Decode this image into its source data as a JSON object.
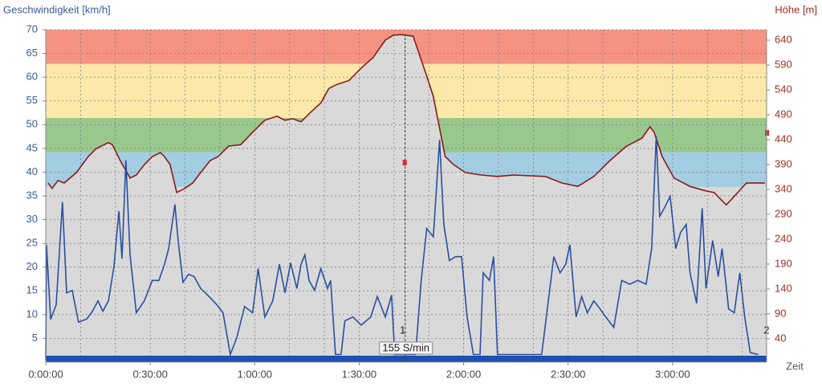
{
  "chart_data": {
    "type": "line",
    "y_label": "Geschwindigkeit [km/h]",
    "y2_label": "Höhe [m]",
    "x_label": "Zeit",
    "xlim": [
      0,
      207
    ],
    "xticks": [
      {
        "value": 0,
        "label": "0:00:00"
      },
      {
        "value": 30,
        "label": "0:30:00"
      },
      {
        "value": 60,
        "label": "1:00:00"
      },
      {
        "value": 90,
        "label": "1:30:00"
      },
      {
        "value": 120,
        "label": "2:00:00"
      },
      {
        "value": 150,
        "label": "2:30:00"
      },
      {
        "value": 180,
        "label": "3:00:00"
      }
    ],
    "x_minor_grid": [
      10,
      20,
      40,
      50,
      70,
      80,
      100,
      110,
      130,
      140,
      160,
      170,
      190,
      200
    ],
    "ylim": [
      0,
      70
    ],
    "yticks": [
      5,
      10,
      15,
      20,
      25,
      30,
      35,
      40,
      45,
      50,
      55,
      60,
      65,
      70
    ],
    "y2lim": [
      -7,
      661
    ],
    "y2ticks": [
      40,
      90,
      140,
      190,
      240,
      290,
      340,
      390,
      440,
      490,
      540,
      590,
      640
    ],
    "grid": true,
    "background": "#d9d9d9",
    "zones": [
      {
        "from": 62.8,
        "to": 70,
        "color": "#f59382"
      },
      {
        "from": 51.4,
        "to": 62.8,
        "color": "#fce8a8"
      },
      {
        "from": 44.2,
        "to": 51.4,
        "color": "#98c88c"
      },
      {
        "from": 36.9,
        "to": 44.2,
        "color": "#a2cde2"
      }
    ],
    "series": [
      {
        "name": "Höhe",
        "axis": "y2",
        "color": "#8b1a1a",
        "fill": "#d9d9d9",
        "x": [
          0.7,
          1.8,
          3.5,
          5.3,
          8.8,
          12.2,
          14.5,
          18.0,
          19.1,
          21.4,
          24.2,
          26.0,
          28.3,
          30.6,
          32.9,
          34.1,
          35.7,
          37.6,
          39.9,
          42.2,
          44.5,
          47.2,
          49.5,
          52.5,
          56.0,
          59.4,
          62.9,
          66.4,
          68.7,
          71.0,
          73.3,
          75.6,
          79.0,
          81.3,
          83.6,
          87.1,
          90.6,
          94.0,
          97.5,
          99.8,
          102.1,
          105.5,
          109.0,
          111.3,
          113.1,
          114.7,
          117.1,
          120.5,
          125.1,
          129.7,
          134.3,
          143.5,
          148.2,
          152.8,
          157.4,
          162.0,
          166.6,
          171.2,
          173.5,
          174.7,
          177.0,
          180.4,
          185.0,
          189.6,
          191.9,
          195.4,
          197.7,
          201.2,
          206.5
        ],
        "values": [
          353,
          342,
          358,
          353,
          374,
          406,
          422,
          434,
          430,
          398,
          363,
          369,
          390,
          406,
          414,
          406,
          390,
          334,
          342,
          353,
          374,
          398,
          406,
          427,
          430,
          455,
          479,
          487,
          479,
          482,
          476,
          492,
          514,
          543,
          551,
          559,
          584,
          605,
          640,
          650,
          651,
          648,
          576,
          527,
          463,
          406,
          390,
          374,
          369,
          366,
          369,
          366,
          353,
          346,
          366,
          398,
          426,
          443,
          466,
          455,
          406,
          363,
          346,
          337,
          334,
          309,
          326,
          353,
          353
        ]
      },
      {
        "name": "Geschwindigkeit",
        "axis": "y",
        "color": "#2a4fa0",
        "x": [
          0,
          0.2,
          1.4,
          3.0,
          4.8,
          6.0,
          7.6,
          9.4,
          11.8,
          13.4,
          15.0,
          16.4,
          18.0,
          19.6,
          21.0,
          21.9,
          23.0,
          24.2,
          26.0,
          28.3,
          30.6,
          32.5,
          34.1,
          35.3,
          37.1,
          38.0,
          39.4,
          41.0,
          42.6,
          44.5,
          46.8,
          49.1,
          50.9,
          53.0,
          54.8,
          57.1,
          59.4,
          61.0,
          62.9,
          65.2,
          67.1,
          68.7,
          70.3,
          72.1,
          73.3,
          74.4,
          75.6,
          77.2,
          79.0,
          80.9,
          81.8,
          83.2,
          84.8,
          85.9,
          88.2,
          90.6,
          93.3,
          95.2,
          97.5,
          99.3,
          100.2,
          106.2,
          107.8,
          109.4,
          111.3,
          113.1,
          114.3,
          115.9,
          117.7,
          119.4,
          121.0,
          122.8,
          124.7,
          125.6,
          127.4,
          128.6,
          129.7,
          142.4,
          145.9,
          147.7,
          149.3,
          150.5,
          152.3,
          153.9,
          155.5,
          157.4,
          159.2,
          160.8,
          163.1,
          165.4,
          167.7,
          170.0,
          172.4,
          174.0,
          175.3,
          176.3,
          177.6,
          179.3,
          180.9,
          182.3,
          183.9,
          185.0,
          186.9,
          188.5,
          189.6,
          191.5,
          193.1,
          194.2,
          196.1,
          197.7,
          199.3,
          200.7,
          202.3,
          204.6
        ],
        "values": [
          0.5,
          24.7,
          9.0,
          12.1,
          33.7,
          14.6,
          15.1,
          8.4,
          9.1,
          10.7,
          12.9,
          10.7,
          12.9,
          20.2,
          31.8,
          21.8,
          42.5,
          22.6,
          10.4,
          12.9,
          17.2,
          17.2,
          20.6,
          23.9,
          33.2,
          25.6,
          16.8,
          18.5,
          18.0,
          15.5,
          13.9,
          12.1,
          10.4,
          1.6,
          5.0,
          11.7,
          10.4,
          19.7,
          9.5,
          12.9,
          20.6,
          14.6,
          20.9,
          15.5,
          20.6,
          22.6,
          17.2,
          15.1,
          19.7,
          15.5,
          17.2,
          1.6,
          1.6,
          8.7,
          9.5,
          7.8,
          9.5,
          13.8,
          9.5,
          14.1,
          1.6,
          1.6,
          17.2,
          28.1,
          26.4,
          46.8,
          29.0,
          21.4,
          22.2,
          22.2,
          9.5,
          1.6,
          1.6,
          18.8,
          17.2,
          22.2,
          1.6,
          1.6,
          22.2,
          18.8,
          20.6,
          24.7,
          9.5,
          13.8,
          10.4,
          12.9,
          11.2,
          9.5,
          7.3,
          17.2,
          16.4,
          17.2,
          16.4,
          23.9,
          47.6,
          30.7,
          32.4,
          34.9,
          23.9,
          27.3,
          29.0,
          18.8,
          12.4,
          32.4,
          15.5,
          25.6,
          18.0,
          23.9,
          11.2,
          10.4,
          18.8,
          9.5,
          2.0,
          1.6
        ]
      }
    ],
    "cursor": {
      "x": 103.2,
      "label": "155 S/min"
    },
    "markers": [
      {
        "x": 102.5,
        "label": "1"
      },
      {
        "x": 207,
        "label": "2"
      }
    ]
  }
}
